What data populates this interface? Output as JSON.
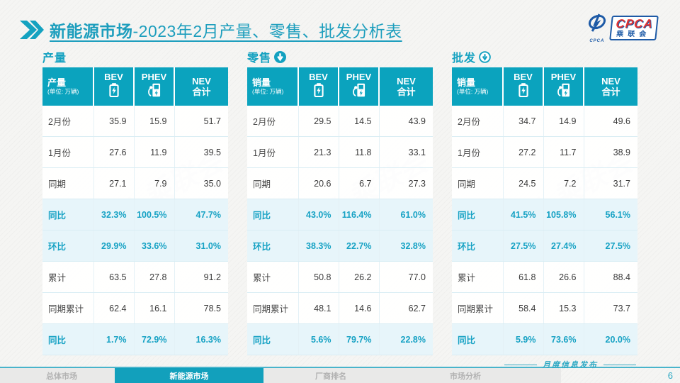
{
  "title": {
    "bold": "新能源市场",
    "rest": "-2023年2月产量、零售、批发分析表"
  },
  "logo": {
    "cpca": "CPCA",
    "cn": "乘联会",
    "swoosh_sub": "CPCA"
  },
  "colors": {
    "teal": "#0ba3be",
    "highlight_bg": "#e7f5fa",
    "percent_text": "#17a2c4",
    "logo_blue": "#1d5aa6",
    "logo_red": "#e23333"
  },
  "watermark": "CPCA 乘联会",
  "tables": [
    {
      "section": "产量",
      "section_icon": "none",
      "header": {
        "label": "产量",
        "unit": "(单位: 万辆)",
        "col_bev": "BEV",
        "col_phev": "PHEV",
        "col_nev_line1": "NEV",
        "col_nev_line2": "合计"
      },
      "rows": [
        {
          "label": "2月份",
          "values": [
            "35.9",
            "15.9",
            "51.7"
          ],
          "highlight": false
        },
        {
          "label": "1月份",
          "values": [
            "27.6",
            "11.9",
            "39.5"
          ],
          "highlight": false
        },
        {
          "label": "同期",
          "values": [
            "27.1",
            "7.9",
            "35.0"
          ],
          "highlight": false
        },
        {
          "label": "同比",
          "values": [
            "32.3%",
            "100.5%",
            "47.7%"
          ],
          "highlight": true
        },
        {
          "label": "环比",
          "values": [
            "29.9%",
            "33.6%",
            "31.0%"
          ],
          "highlight": true
        },
        {
          "label": "累计",
          "values": [
            "63.5",
            "27.8",
            "91.2"
          ],
          "highlight": false
        },
        {
          "label": "同期累计",
          "values": [
            "62.4",
            "16.1",
            "78.5"
          ],
          "highlight": false
        },
        {
          "label": "同比",
          "values": [
            "1.7%",
            "72.9%",
            "16.3%"
          ],
          "highlight": true
        }
      ]
    },
    {
      "section": "零售",
      "section_icon": "down-arrow-solid-icon",
      "header": {
        "label": "销量",
        "unit": "(单位: 万辆)",
        "col_bev": "BEV",
        "col_phev": "PHEV",
        "col_nev_line1": "NEV",
        "col_nev_line2": "合计"
      },
      "rows": [
        {
          "label": "2月份",
          "values": [
            "29.5",
            "14.5",
            "43.9"
          ],
          "highlight": false
        },
        {
          "label": "1月份",
          "values": [
            "21.3",
            "11.8",
            "33.1"
          ],
          "highlight": false
        },
        {
          "label": "同期",
          "values": [
            "20.6",
            "6.7",
            "27.3"
          ],
          "highlight": false
        },
        {
          "label": "同比",
          "values": [
            "43.0%",
            "116.4%",
            "61.0%"
          ],
          "highlight": true
        },
        {
          "label": "环比",
          "values": [
            "38.3%",
            "22.7%",
            "32.8%"
          ],
          "highlight": true
        },
        {
          "label": "累计",
          "values": [
            "50.8",
            "26.2",
            "77.0"
          ],
          "highlight": false
        },
        {
          "label": "同期累计",
          "values": [
            "48.1",
            "14.6",
            "62.7"
          ],
          "highlight": false
        },
        {
          "label": "同比",
          "values": [
            "5.6%",
            "79.7%",
            "22.8%"
          ],
          "highlight": true
        }
      ]
    },
    {
      "section": "批发",
      "section_icon": "down-arrow-outline-icon",
      "header": {
        "label": "销量",
        "unit": "(单位: 万辆)",
        "col_bev": "BEV",
        "col_phev": "PHEV",
        "col_nev_line1": "NEV",
        "col_nev_line2": "合计"
      },
      "rows": [
        {
          "label": "2月份",
          "values": [
            "34.7",
            "14.9",
            "49.6"
          ],
          "highlight": false
        },
        {
          "label": "1月份",
          "values": [
            "27.2",
            "11.7",
            "38.9"
          ],
          "highlight": false
        },
        {
          "label": "同期",
          "values": [
            "24.5",
            "7.2",
            "31.7"
          ],
          "highlight": false
        },
        {
          "label": "同比",
          "values": [
            "41.5%",
            "105.8%",
            "56.1%"
          ],
          "highlight": true
        },
        {
          "label": "环比",
          "values": [
            "27.5%",
            "27.4%",
            "27.5%"
          ],
          "highlight": true
        },
        {
          "label": "累计",
          "values": [
            "61.8",
            "26.6",
            "88.4"
          ],
          "highlight": false
        },
        {
          "label": "同期累计",
          "values": [
            "58.4",
            "15.3",
            "73.7"
          ],
          "highlight": false
        },
        {
          "label": "同比",
          "values": [
            "5.9%",
            "73.6%",
            "20.0%"
          ],
          "highlight": true
        }
      ]
    }
  ],
  "footer": {
    "tabs": [
      {
        "label": "总体市场",
        "active": false
      },
      {
        "label": "新能源市场",
        "active": true
      },
      {
        "label": "厂商排名",
        "active": false
      },
      {
        "label": "市场分析",
        "active": false
      }
    ],
    "publish_label": "月度信息发布",
    "page_number": "6"
  }
}
